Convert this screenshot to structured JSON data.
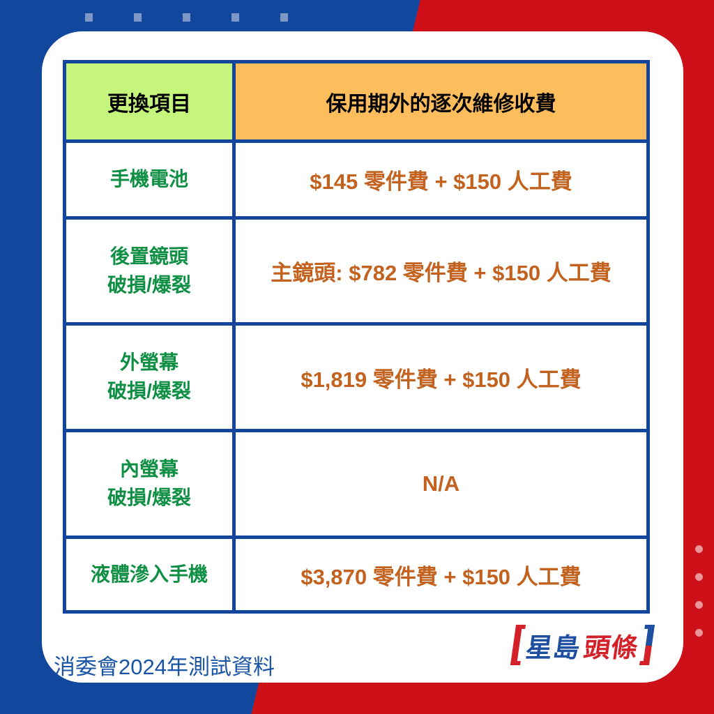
{
  "colors": {
    "bg_blue": "#11489D",
    "bg_red": "#CE1118",
    "card": "#FFFFFF",
    "table_border": "#12459B",
    "header_green_bg": "#C6F57D",
    "header_orange_bg": "#FDBD5D",
    "header_text": "#000000",
    "item_text_green": "#0E8F44",
    "fee_text_orange": "#C2621E",
    "footer_text": "#1A55A5",
    "logo_blue": "#1E4FA1",
    "logo_red": "#D42028",
    "decor_square": "#7E98C5",
    "decor_dot": "#E8959A"
  },
  "table": {
    "header": [
      {
        "label": "更換項目"
      },
      {
        "label": "保用期外的逐次維修收費"
      }
    ],
    "rows": [
      {
        "item": "手機電池",
        "fee": "$145 零件費 + $150 人工費"
      },
      {
        "item": "後置鏡頭\n破損/爆裂",
        "fee": "主鏡頭: $782 零件費 + $150 人工費"
      },
      {
        "item": "外螢幕\n破損/爆裂",
        "fee": "$1,819 零件費 + $150 人工費"
      },
      {
        "item": "內螢幕\n破損/爆裂",
        "fee": "N/A"
      },
      {
        "item": "液體滲入手機",
        "fee": "$3,870 零件費 + $150 人工費"
      }
    ]
  },
  "footer": {
    "source_note": "消委會2024年測試資料"
  },
  "logo": {
    "part1": "星島",
    "part2": "頭條"
  },
  "chart_data": {
    "type": "table",
    "columns": [
      "更換項目",
      "保用期外的逐次維修收費"
    ],
    "rows": [
      [
        "手機電池",
        "$145 零件費 + $150 人工費"
      ],
      [
        "後置鏡頭 破損/爆裂",
        "主鏡頭: $782 零件費 + $150 人工費"
      ],
      [
        "外螢幕 破損/爆裂",
        "$1,819 零件費 + $150 人工費"
      ],
      [
        "內螢幕 破損/爆裂",
        "N/A"
      ],
      [
        "液體滲入手機",
        "$3,870 零件費 + $150 人工費"
      ]
    ],
    "notes": "消委會2024年測試資料"
  }
}
